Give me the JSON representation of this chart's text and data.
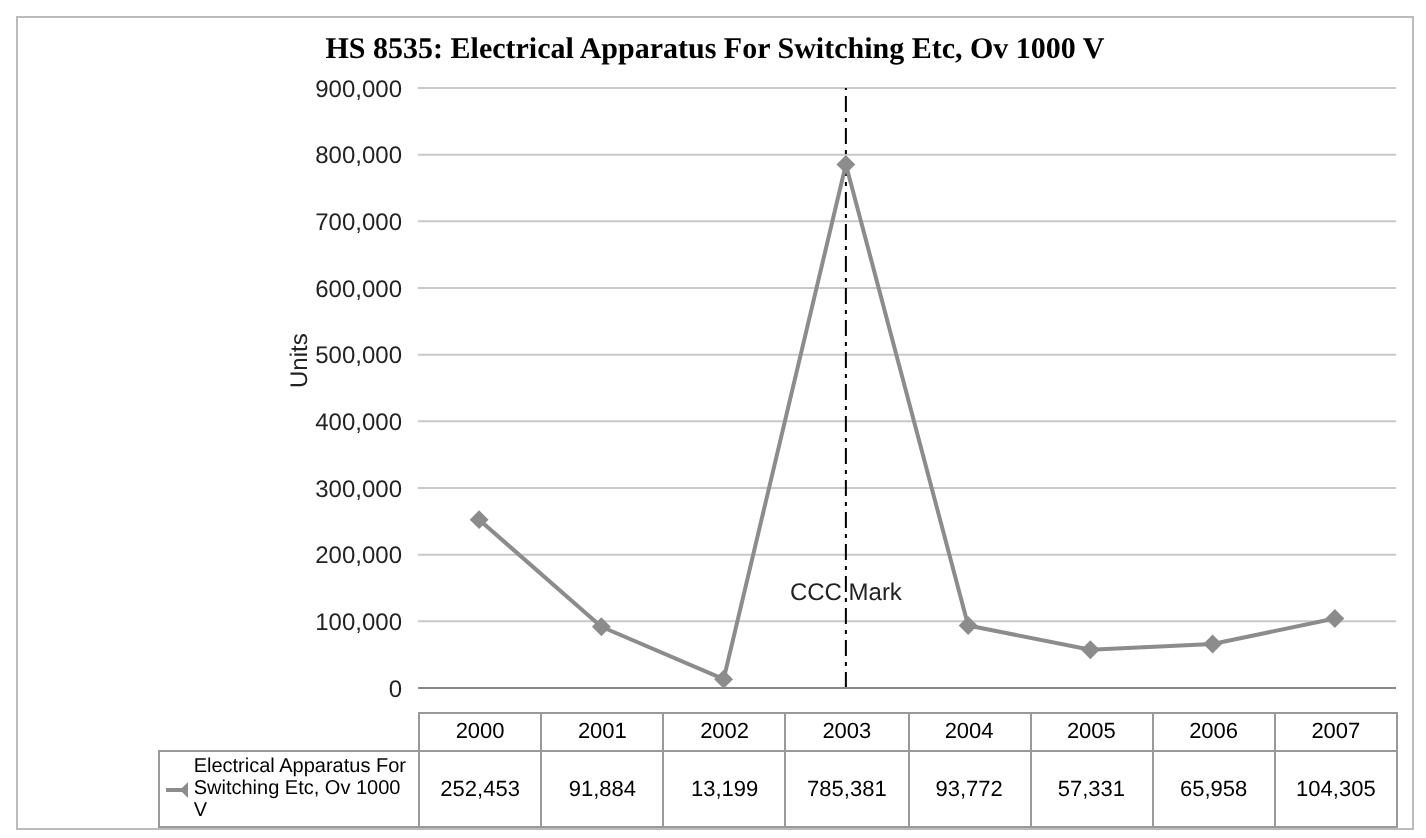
{
  "chart_data": {
    "type": "line",
    "title": "HS 8535: Electrical Apparatus For Switching Etc, Ov 1000 V",
    "ylabel": "Units",
    "categories": [
      "2000",
      "2001",
      "2002",
      "2003",
      "2004",
      "2005",
      "2006",
      "2007"
    ],
    "series": [
      {
        "name": "Electrical Apparatus For Switching Etc, Ov 1000 V",
        "color": "#8c8c8c",
        "values": [
          252453,
          91884,
          13199,
          785381,
          93772,
          57331,
          65958,
          104305
        ],
        "value_labels": [
          "252,453",
          "91,884",
          "13,199",
          "785,381",
          "93,772",
          "57,331",
          "65,958",
          "104,305"
        ]
      }
    ],
    "ylim": [
      0,
      900000
    ],
    "yticks": [
      0,
      {
        "value": 100000,
        "label": "100,000"
      },
      {
        "value": 200000,
        "label": "200,000"
      },
      {
        "value": 300000,
        "label": "300,000"
      },
      {
        "value": 400000,
        "label": "400,000"
      },
      {
        "value": 500000,
        "label": "500,000"
      },
      {
        "value": 600000,
        "label": "600,000"
      },
      {
        "value": 700000,
        "label": "700,000"
      },
      {
        "value": 800000,
        "label": "800,000"
      },
      {
        "value": 900000,
        "label": "900,000"
      }
    ],
    "grid": "y",
    "marker": "diamond",
    "legend": "bottom",
    "ref_lines": [
      {
        "axis": "x",
        "value": "2003",
        "label": "CCC Mark",
        "line_style": "dashed",
        "color": "#000000"
      }
    ]
  }
}
